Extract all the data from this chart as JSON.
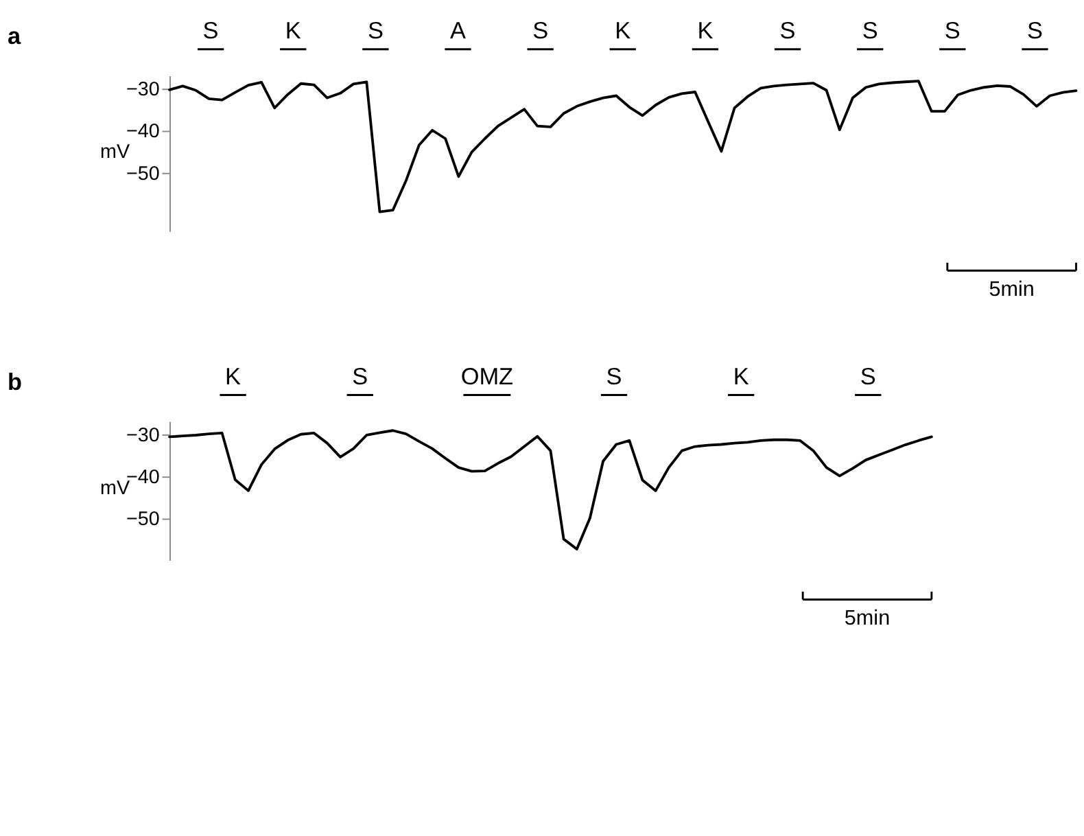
{
  "chart_data": [
    {
      "type": "line",
      "title": "a",
      "ylabel": "mV",
      "tick_labels": "y",
      "grid": false,
      "ylim": [
        -64,
        -27
      ],
      "yticks": [
        -30,
        -40,
        -50
      ],
      "annotations": [
        "S",
        "K",
        "S",
        "A",
        "S",
        "K",
        "K",
        "S",
        "S",
        "S",
        "S",
        "5min"
      ],
      "categories": [
        null,
        null,
        null,
        null,
        null,
        null,
        null,
        null,
        null,
        null,
        null,
        null,
        null,
        null,
        null,
        null,
        null,
        null,
        null,
        null,
        null,
        null,
        null,
        null,
        null,
        null,
        null,
        null,
        null,
        null,
        null,
        null,
        null,
        null,
        null,
        null,
        null,
        null,
        null,
        null,
        null,
        null,
        null,
        null,
        null,
        null,
        null,
        null,
        null,
        null,
        null,
        null,
        null,
        null,
        null,
        null,
        null,
        null,
        null,
        null,
        null,
        null,
        null,
        null,
        null,
        null,
        null,
        null,
        null,
        null
      ],
      "series": [
        {
          "color": "#000000",
          "values": [
            -30.4,
            -29.5,
            -30.5,
            -32.5,
            -32.8,
            -31,
            -29.3,
            -28.6,
            -34.7,
            -31.5,
            -28.9,
            -29.2,
            -32.3,
            -31.2,
            -29,
            -28.5,
            -59.4,
            -59,
            -52,
            -43.5,
            -40,
            -42,
            -51,
            -45.2,
            -42,
            -39,
            -37,
            -35,
            -39,
            -39.2,
            -36,
            -34.3,
            -33.2,
            -32.3,
            -31.8,
            -34.5,
            -36.5,
            -34,
            -32.2,
            -31.3,
            -30.9,
            -38,
            -45,
            -34.7,
            -32,
            -30,
            -29.5,
            -29.2,
            -29,
            -28.8,
            -30.5,
            -39.9,
            -32.3,
            -29.8,
            -29,
            -28.7,
            -28.5,
            -28.3,
            -35.5,
            -35.5,
            -31.6,
            -30.5,
            -29.8,
            -29.4,
            -29.6,
            -31.5,
            -34.3,
            -31.8,
            -31,
            -30.6
          ]
        }
      ]
    },
    {
      "type": "line",
      "title": "b",
      "ylabel": "mV",
      "tick_labels": "y",
      "grid": false,
      "ylim": [
        -60,
        -27
      ],
      "yticks": [
        -30,
        -40,
        -50
      ],
      "annotations": [
        "K",
        "S",
        "OMZ",
        "S",
        "K",
        "S",
        "5min"
      ],
      "categories": [
        null,
        null,
        null,
        null,
        null,
        null,
        null,
        null,
        null,
        null,
        null,
        null,
        null,
        null,
        null,
        null,
        null,
        null,
        null,
        null,
        null,
        null,
        null,
        null,
        null,
        null,
        null,
        null,
        null,
        null,
        null,
        null,
        null,
        null,
        null,
        null,
        null,
        null,
        null,
        null,
        null,
        null,
        null,
        null,
        null,
        null,
        null,
        null,
        null,
        null,
        null,
        null,
        null,
        null,
        null,
        null,
        null,
        null,
        null
      ],
      "series": [
        {
          "color": "#000000",
          "values": [
            -30.7,
            -30.5,
            -30.3,
            -30,
            -29.8,
            -40.9,
            -43.5,
            -37.3,
            -33.6,
            -31.5,
            -30.1,
            -29.8,
            -32.2,
            -35.5,
            -33.5,
            -30.3,
            -29.7,
            -29.2,
            -30,
            -31.8,
            -33.5,
            -35.8,
            -38,
            -38.9,
            -38.8,
            -37,
            -35.4,
            -33,
            -30.6,
            -34,
            -55,
            -57.4,
            -50,
            -36.5,
            -32.5,
            -31.6,
            -41,
            -43.5,
            -38,
            -34,
            -33,
            -32.7,
            -32.5,
            -32.2,
            -32,
            -31.6,
            -31.4,
            -31.4,
            -31.6,
            -34,
            -38,
            -40,
            -38.2,
            -36.2,
            -35,
            -33.8,
            -32.6,
            -31.6,
            -30.7
          ]
        }
      ]
    }
  ]
}
